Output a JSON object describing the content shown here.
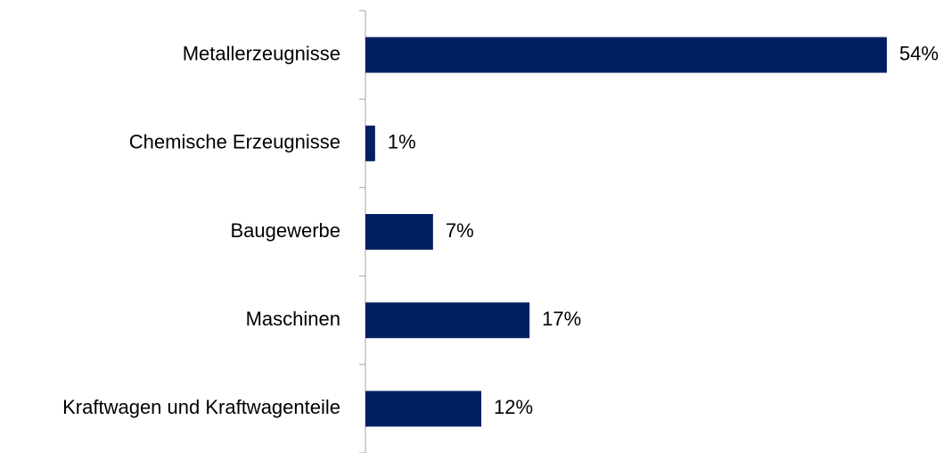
{
  "chart_data": {
    "type": "bar",
    "orientation": "horizontal",
    "categories": [
      "Metallerzeugnisse",
      "Chemische Erzeugnisse",
      "Baugewerbe",
      "Maschinen",
      "Kraftwagen und Kraftwagenteile"
    ],
    "values": [
      54,
      1,
      7,
      17,
      12
    ],
    "value_labels": [
      "54%",
      "1%",
      "7%",
      "17%",
      "12%"
    ],
    "color": "#002060"
  }
}
